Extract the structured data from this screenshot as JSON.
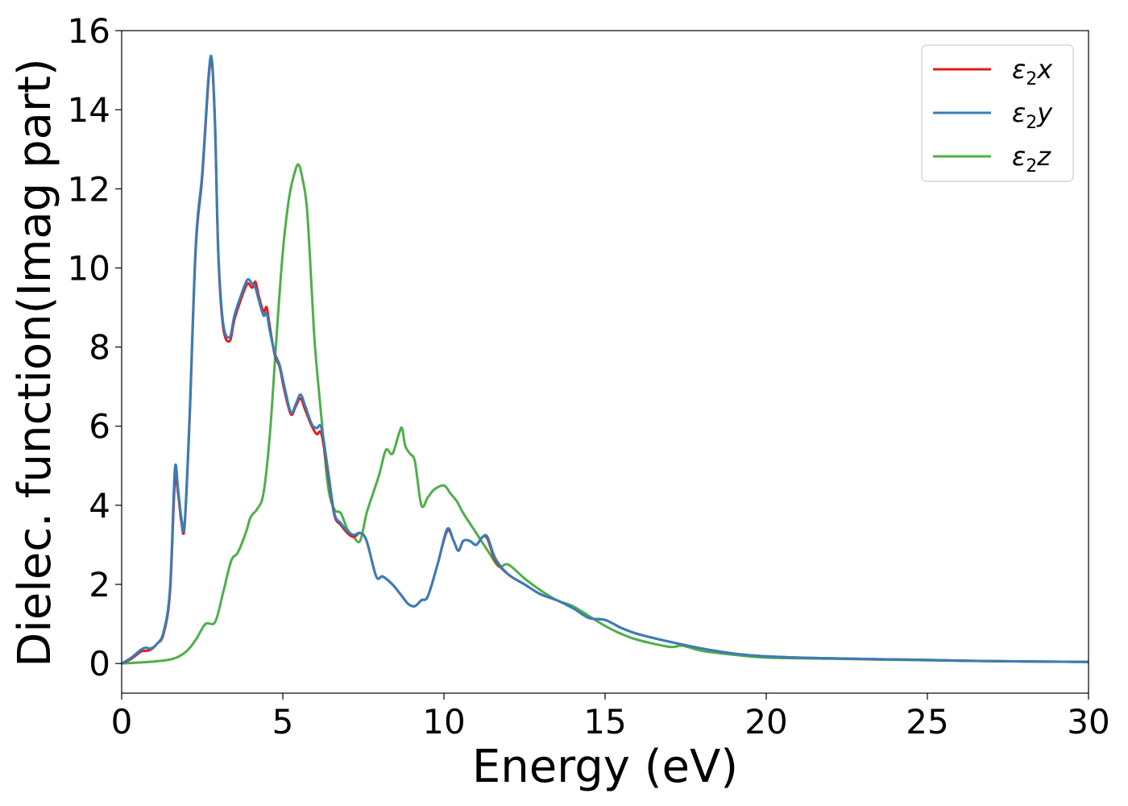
{
  "chart_data": {
    "type": "line",
    "xlabel": "Energy (eV)",
    "ylabel": "Dielec. function(Imag part)",
    "xlim": [
      0,
      30
    ],
    "ylim": [
      -0.75,
      16
    ],
    "xticks": [
      0,
      5,
      10,
      15,
      20,
      25,
      30
    ],
    "yticks": [
      0,
      2,
      4,
      6,
      8,
      10,
      12,
      14,
      16
    ],
    "grid": false,
    "legend_position": "top-right",
    "series": [
      {
        "name": "ε₂x",
        "legend_main": "ε",
        "legend_sub": "2",
        "legend_suffix": "x",
        "color": "#e41a1c",
        "x": [
          0,
          0.3,
          0.6,
          0.75,
          0.9,
          1.1,
          1.3,
          1.5,
          1.65,
          1.75,
          1.85,
          1.95,
          2.1,
          2.3,
          2.5,
          2.7,
          2.8,
          2.9,
          3.0,
          3.15,
          3.35,
          3.5,
          3.7,
          3.9,
          4.05,
          4.15,
          4.25,
          4.4,
          4.5,
          4.6,
          4.75,
          4.9,
          5.05,
          5.25,
          5.4,
          5.55,
          5.7,
          5.9,
          6.05,
          6.2,
          6.4,
          6.6,
          6.8,
          7.0,
          7.2,
          7.4,
          7.6,
          7.9,
          8.1,
          8.4,
          8.7,
          8.9,
          9.1,
          9.3,
          9.5,
          9.8,
          10.1,
          10.3,
          10.45,
          10.6,
          10.8,
          11.0,
          11.2,
          11.35,
          11.6,
          12.0,
          12.5,
          13.0,
          13.5,
          14.0,
          14.5,
          15.0,
          15.5,
          16.0,
          17.0,
          18.0,
          19.0,
          20.0,
          22.0,
          25.0,
          27.0,
          30.0
        ],
        "y": [
          0.0,
          0.12,
          0.3,
          0.32,
          0.35,
          0.5,
          0.75,
          1.8,
          4.6,
          4.3,
          3.6,
          3.45,
          6.0,
          10.5,
          12.3,
          14.8,
          15.2,
          13.5,
          10.3,
          8.5,
          8.15,
          8.7,
          9.2,
          9.6,
          9.5,
          9.65,
          9.3,
          8.9,
          9.0,
          8.5,
          7.8,
          7.5,
          6.9,
          6.3,
          6.5,
          6.7,
          6.4,
          6.0,
          5.8,
          5.8,
          4.8,
          3.75,
          3.5,
          3.3,
          3.2,
          3.3,
          3.1,
          2.2,
          2.2,
          2.0,
          1.7,
          1.5,
          1.45,
          1.6,
          1.7,
          2.5,
          3.35,
          3.1,
          2.85,
          3.1,
          3.1,
          3.0,
          3.2,
          3.15,
          2.6,
          2.25,
          2.0,
          1.75,
          1.6,
          1.4,
          1.15,
          1.1,
          0.9,
          0.75,
          0.55,
          0.38,
          0.25,
          0.18,
          0.13,
          0.09,
          0.06,
          0.04
        ]
      },
      {
        "name": "ε₂y",
        "legend_main": "ε",
        "legend_sub": "2",
        "legend_suffix": "y",
        "color": "#377eb8",
        "x": [
          0,
          0.3,
          0.6,
          0.75,
          0.9,
          1.1,
          1.3,
          1.5,
          1.65,
          1.75,
          1.85,
          1.95,
          2.1,
          2.3,
          2.5,
          2.7,
          2.8,
          2.9,
          3.0,
          3.15,
          3.35,
          3.5,
          3.7,
          3.9,
          4.05,
          4.15,
          4.25,
          4.4,
          4.5,
          4.6,
          4.75,
          4.9,
          5.05,
          5.25,
          5.4,
          5.55,
          5.7,
          5.9,
          6.05,
          6.2,
          6.4,
          6.6,
          6.8,
          7.0,
          7.2,
          7.4,
          7.6,
          7.9,
          8.1,
          8.4,
          8.7,
          8.9,
          9.1,
          9.3,
          9.5,
          9.8,
          10.1,
          10.3,
          10.45,
          10.6,
          10.8,
          11.0,
          11.2,
          11.35,
          11.6,
          12.0,
          12.5,
          13.0,
          13.5,
          14.0,
          14.5,
          15.0,
          15.5,
          16.0,
          17.0,
          18.0,
          19.0,
          20.0,
          22.0,
          25.0,
          27.0,
          30.0
        ],
        "y": [
          0.0,
          0.15,
          0.35,
          0.4,
          0.38,
          0.5,
          0.8,
          1.9,
          4.9,
          4.4,
          3.7,
          3.5,
          6.1,
          10.6,
          12.4,
          14.9,
          15.25,
          13.6,
          10.4,
          8.6,
          8.25,
          8.8,
          9.3,
          9.7,
          9.6,
          9.5,
          9.2,
          8.8,
          8.85,
          8.4,
          7.85,
          7.55,
          7.0,
          6.35,
          6.55,
          6.8,
          6.5,
          6.05,
          5.95,
          5.95,
          4.9,
          3.8,
          3.55,
          3.35,
          3.25,
          3.3,
          3.1,
          2.2,
          2.2,
          2.0,
          1.7,
          1.5,
          1.45,
          1.6,
          1.7,
          2.5,
          3.4,
          3.1,
          2.85,
          3.1,
          3.1,
          3.0,
          3.2,
          3.2,
          2.65,
          2.25,
          2.0,
          1.75,
          1.6,
          1.4,
          1.15,
          1.1,
          0.9,
          0.75,
          0.55,
          0.38,
          0.25,
          0.18,
          0.13,
          0.09,
          0.06,
          0.04
        ]
      },
      {
        "name": "ε₂z",
        "legend_main": "ε",
        "legend_sub": "2",
        "legend_suffix": "z",
        "color": "#4daf4a",
        "x": [
          0,
          1.0,
          1.6,
          2.0,
          2.3,
          2.6,
          2.9,
          3.15,
          3.4,
          3.6,
          3.85,
          4.0,
          4.2,
          4.4,
          4.6,
          4.8,
          5.0,
          5.2,
          5.4,
          5.5,
          5.6,
          5.75,
          5.9,
          6.0,
          6.2,
          6.4,
          6.6,
          6.8,
          7.0,
          7.2,
          7.4,
          7.6,
          7.8,
          8.0,
          8.2,
          8.4,
          8.6,
          8.7,
          8.8,
          8.95,
          9.1,
          9.3,
          9.5,
          9.7,
          10.0,
          10.2,
          10.4,
          10.6,
          11.0,
          11.4,
          11.7,
          12.0,
          12.5,
          13.0,
          13.5,
          14.0,
          14.5,
          15.0,
          15.5,
          16.0,
          17.0,
          17.4,
          18.0,
          19.0,
          20.0,
          22.0,
          25.0,
          27.0,
          30.0
        ],
        "y": [
          0.0,
          0.05,
          0.12,
          0.3,
          0.6,
          1.0,
          1.05,
          1.8,
          2.6,
          2.8,
          3.3,
          3.7,
          3.9,
          4.3,
          5.8,
          8.2,
          10.4,
          11.8,
          12.5,
          12.6,
          12.3,
          11.5,
          9.4,
          8.0,
          6.2,
          4.5,
          3.9,
          3.8,
          3.4,
          3.2,
          3.1,
          3.8,
          4.3,
          4.8,
          5.4,
          5.3,
          5.8,
          5.95,
          5.5,
          5.3,
          5.1,
          4.0,
          4.2,
          4.4,
          4.5,
          4.3,
          4.1,
          3.8,
          3.3,
          2.8,
          2.45,
          2.5,
          2.15,
          1.85,
          1.6,
          1.45,
          1.2,
          0.95,
          0.75,
          0.6,
          0.42,
          0.45,
          0.32,
          0.22,
          0.15,
          0.12,
          0.08,
          0.06,
          0.04
        ]
      }
    ]
  }
}
